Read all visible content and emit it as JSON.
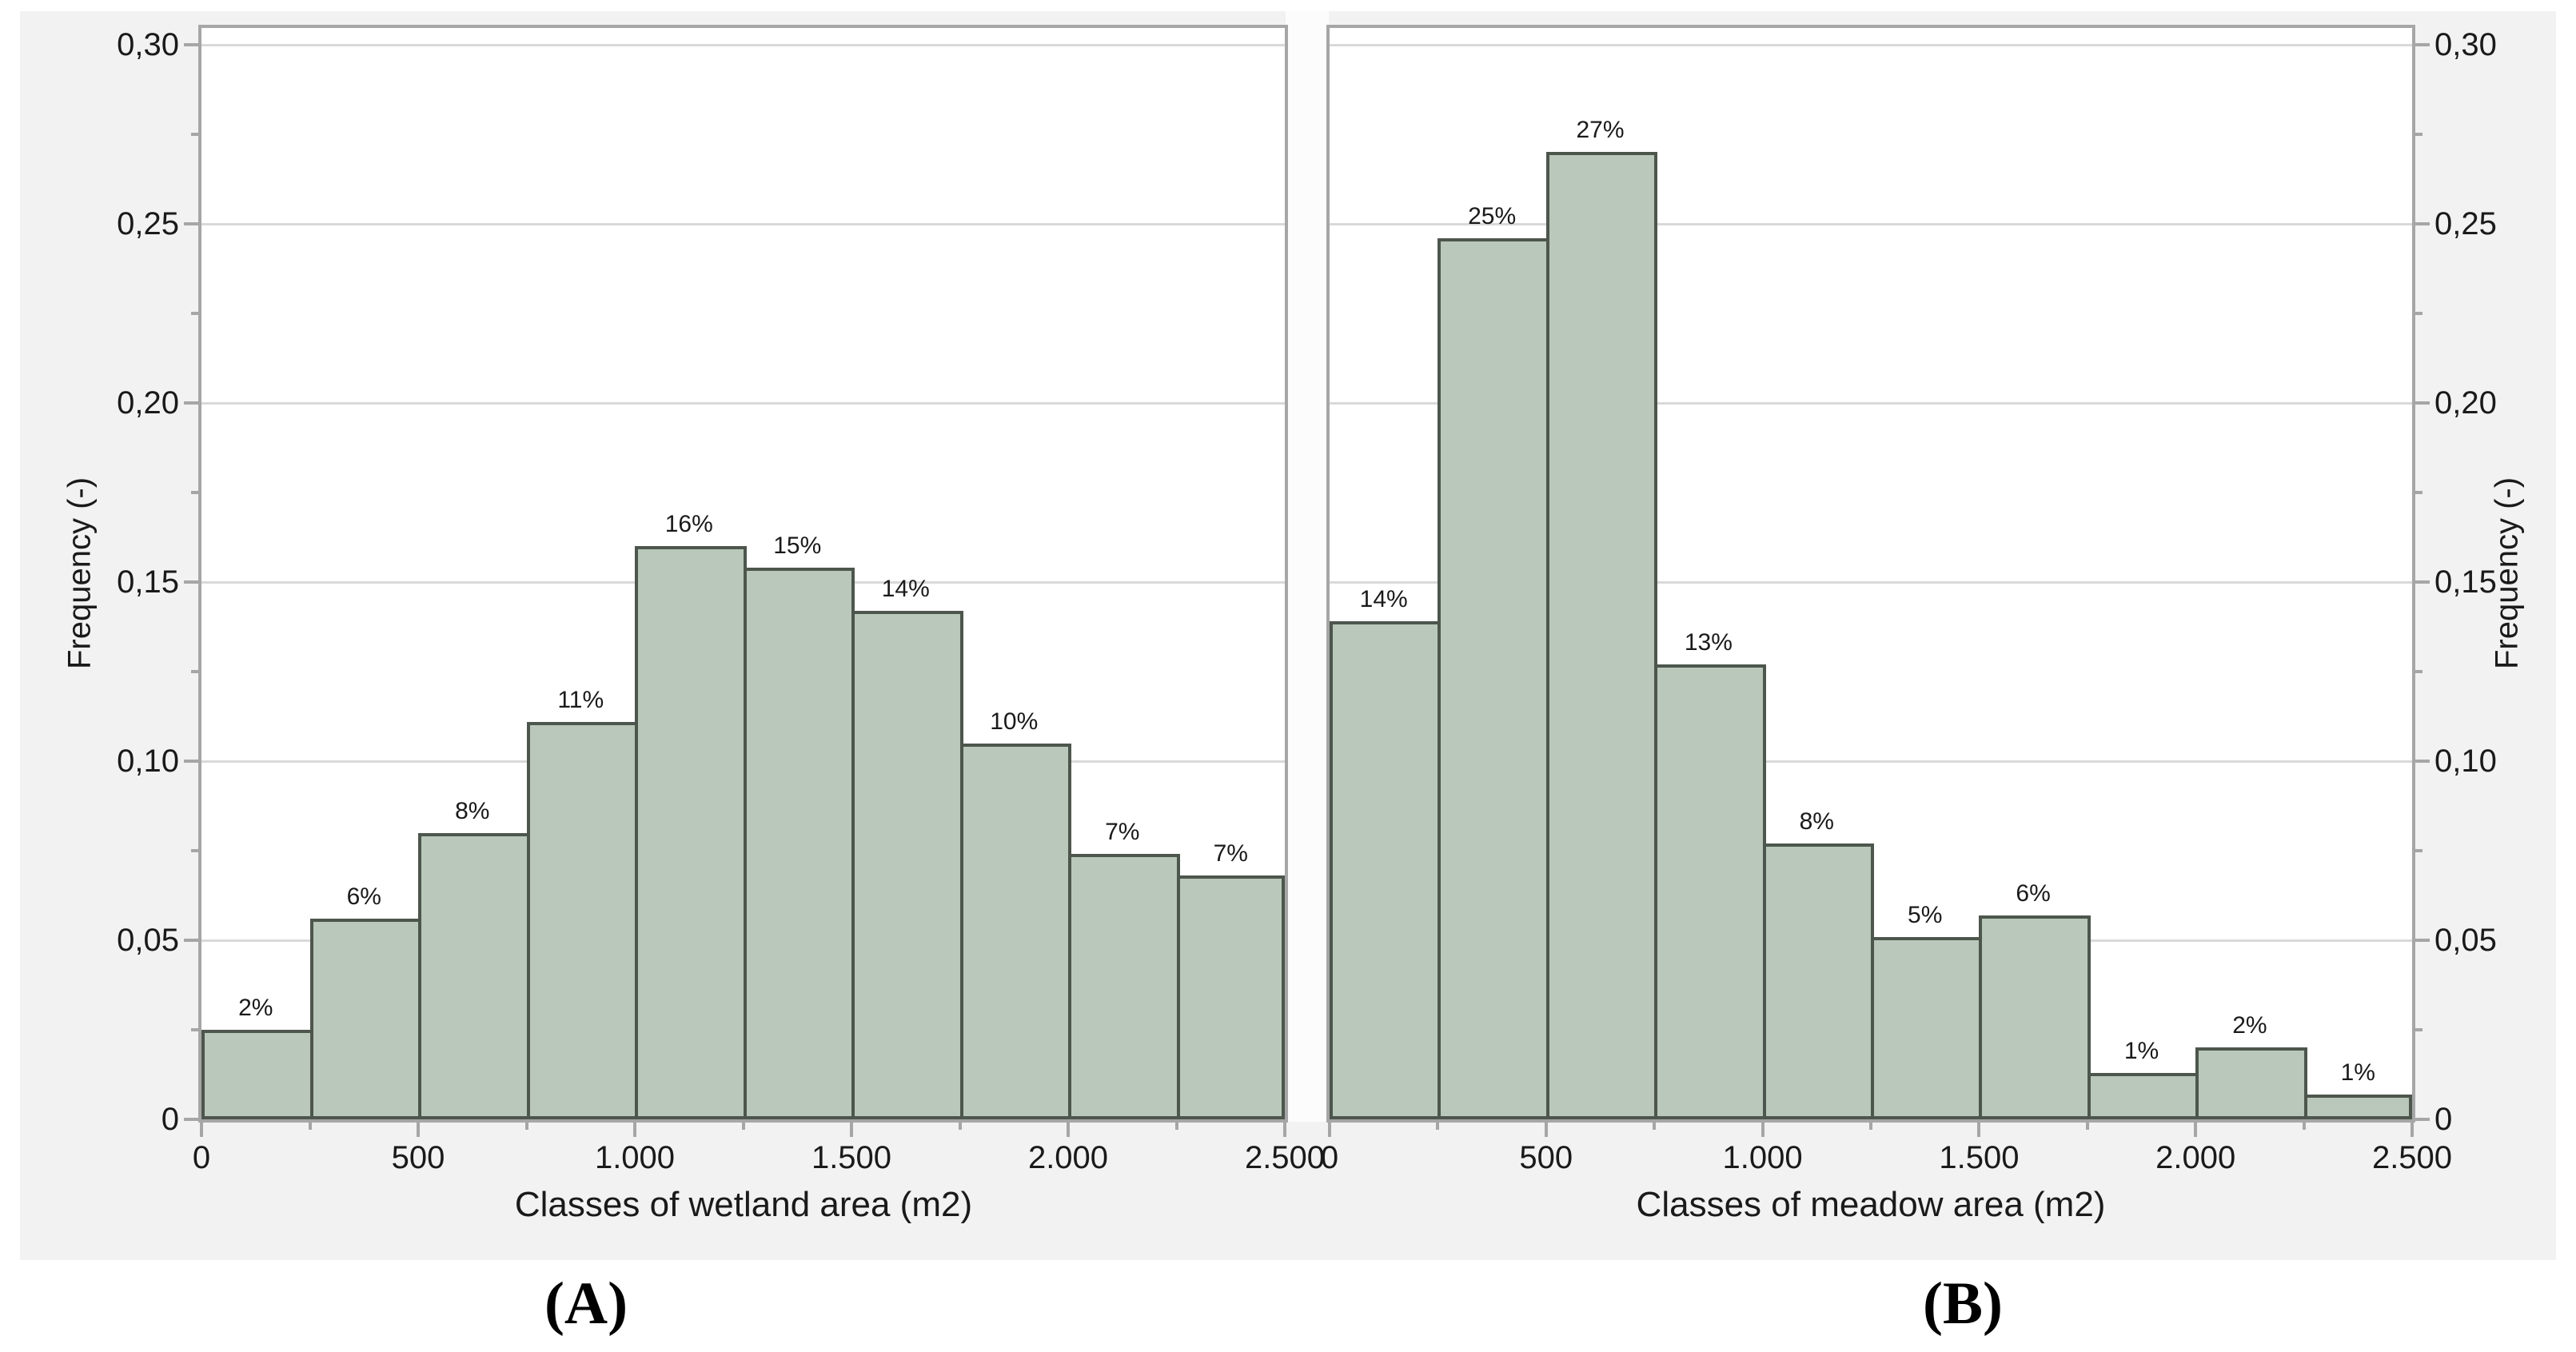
{
  "figure": {
    "colors": {
      "page_bg": "#ffffff",
      "canvas_bg": "#f2f2f2",
      "plot_bg": "#ffffff",
      "grid": "#d9d9d9",
      "axis": "#a6a6a6",
      "bar_fill": "#b9c8ba",
      "bar_border": "#4d564d",
      "text": "#1a1a1a"
    },
    "y_axis": {
      "title": "Frequency (-)",
      "ticks": [
        {
          "label": "0,30",
          "value": 0.3
        },
        {
          "label": "0,25",
          "value": 0.25
        },
        {
          "label": "0,20",
          "value": 0.2
        },
        {
          "label": "0,15",
          "value": 0.15
        },
        {
          "label": "0,10",
          "value": 0.1
        },
        {
          "label": "0,05",
          "value": 0.05
        },
        {
          "label": "0",
          "value": 0
        }
      ],
      "minor_ticks": [
        0.025,
        0.075,
        0.125,
        0.175,
        0.225,
        0.275
      ],
      "range": [
        0,
        0.3
      ]
    },
    "x_axis": {
      "ticks": [
        {
          "label": "0",
          "value": 0
        },
        {
          "label": "500",
          "value": 500
        },
        {
          "label": "1.000",
          "value": 1000
        },
        {
          "label": "1.500",
          "value": 1500
        },
        {
          "label": "2.000",
          "value": 2000
        },
        {
          "label": "2.500",
          "value": 2500
        }
      ],
      "minor_ticks": [
        250,
        750,
        1250,
        1750,
        2250
      ],
      "range": [
        0,
        2500
      ]
    },
    "captions": {
      "a": "(A)",
      "b": "(B)"
    }
  },
  "chart_data": [
    {
      "type": "bar",
      "panel": "A",
      "title": "",
      "xlabel": "Classes of wetland area (m2)",
      "ylabel": "Frequency (-)",
      "xlim": [
        0,
        2500
      ],
      "ylim": [
        0,
        0.3
      ],
      "grid": true,
      "legend_position": "none",
      "bin_width": 250,
      "bin_start": [
        0,
        250,
        500,
        750,
        1000,
        1250,
        1500,
        1750,
        2000,
        2250
      ],
      "values": [
        0.025,
        0.056,
        0.08,
        0.111,
        0.16,
        0.154,
        0.142,
        0.105,
        0.074,
        0.068
      ],
      "bar_labels": [
        "2%",
        "6%",
        "8%",
        "11%",
        "16%",
        "15%",
        "14%",
        "10%",
        "7%",
        "7%"
      ]
    },
    {
      "type": "bar",
      "panel": "B",
      "title": "",
      "xlabel": "Classes of meadow area (m2)",
      "ylabel": "Frequency (-)",
      "xlim": [
        0,
        2500
      ],
      "ylim": [
        0,
        0.3
      ],
      "grid": true,
      "legend_position": "none",
      "bin_width": 250,
      "bin_start": [
        0,
        250,
        500,
        750,
        1000,
        1250,
        1500,
        1750,
        2000,
        2250
      ],
      "values": [
        0.139,
        0.246,
        0.27,
        0.127,
        0.077,
        0.051,
        0.057,
        0.013,
        0.02,
        0.007
      ],
      "bar_labels": [
        "14%",
        "25%",
        "27%",
        "13%",
        "8%",
        "5%",
        "6%",
        "1%",
        "2%",
        "1%"
      ]
    }
  ]
}
